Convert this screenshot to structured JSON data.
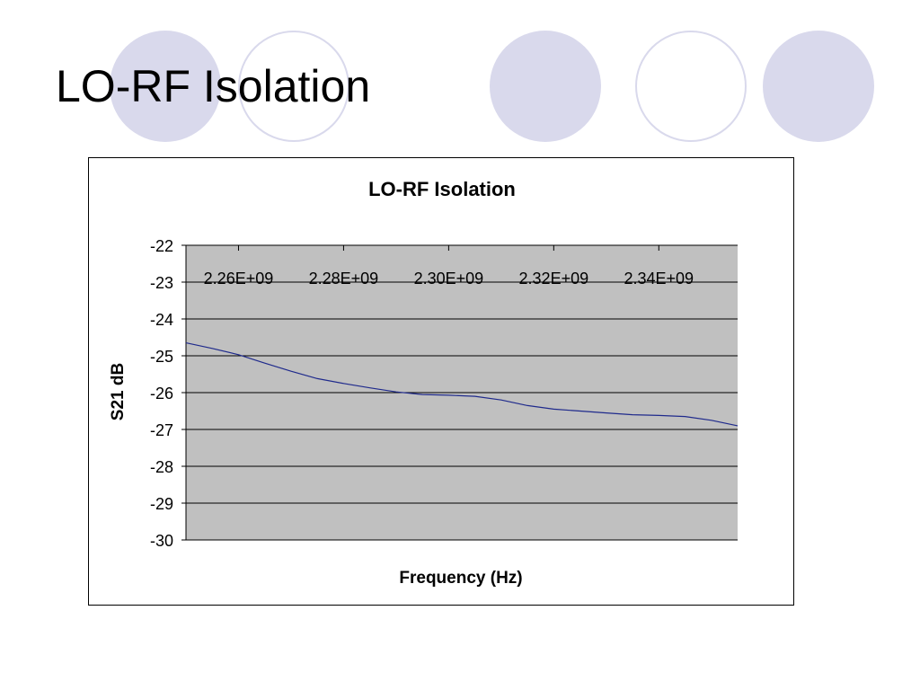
{
  "slide": {
    "title": "LO-RF Isolation"
  },
  "colors": {
    "decor_circle": "#d9d9ec",
    "plot_area": "#c0c0c0",
    "series_line": "#1f2a8c",
    "gridline": "#000000"
  },
  "chart_data": {
    "type": "line",
    "title": "LO-RF Isolation",
    "xlabel": "Frequency (Hz)",
    "ylabel": "S21 dB",
    "xlim": [
      2250000000,
      2355000000
    ],
    "ylim": [
      -30,
      -22
    ],
    "x_tick_values": [
      2260000000,
      2280000000,
      2300000000,
      2320000000,
      2340000000
    ],
    "x_tick_labels": [
      "2.26E+09",
      "2.28E+09",
      "2.30E+09",
      "2.32E+09",
      "2.34E+09"
    ],
    "x_tick_label_position": "at y = -23",
    "y_tick_values": [
      -22,
      -23,
      -24,
      -25,
      -26,
      -27,
      -28,
      -29,
      -30
    ],
    "y_tick_labels": [
      "-22",
      "-23",
      "-24",
      "-25",
      "-26",
      "-27",
      "-28",
      "-29",
      "-30"
    ],
    "grid": true,
    "legend": "none",
    "series": [
      {
        "x": [
          2250000000,
          2255000000,
          2260000000,
          2265000000,
          2270000000,
          2275000000,
          2280000000,
          2285000000,
          2290000000,
          2295000000,
          2300000000,
          2305000000,
          2310000000,
          2315000000,
          2320000000,
          2325000000,
          2330000000,
          2335000000,
          2340000000,
          2345000000,
          2350000000,
          2355000000
        ],
        "values": [
          -24.65,
          -24.8,
          -24.97,
          -25.2,
          -25.42,
          -25.62,
          -25.75,
          -25.87,
          -25.98,
          -26.05,
          -26.07,
          -26.1,
          -26.2,
          -26.35,
          -26.45,
          -26.5,
          -26.55,
          -26.6,
          -26.62,
          -26.65,
          -26.75,
          -26.9
        ]
      }
    ]
  }
}
